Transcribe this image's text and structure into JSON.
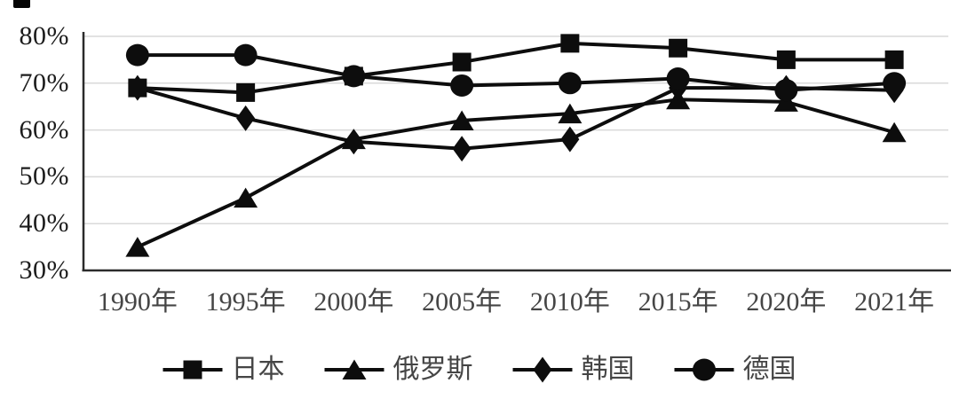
{
  "page": {
    "background": "#ffffff",
    "top_left_cropped_mark": true
  },
  "chart_data": {
    "type": "line",
    "title": "",
    "xlabel": "",
    "ylabel": "",
    "categories": [
      "1990年",
      "1995年",
      "2000年",
      "2005年",
      "2010年",
      "2015年",
      "2020年",
      "2021年"
    ],
    "series": [
      {
        "name": "日本",
        "marker": "square",
        "values": [
          69,
          68,
          71.5,
          74.5,
          78.5,
          77.5,
          75,
          75
        ]
      },
      {
        "name": "俄罗斯",
        "marker": "triangle",
        "values": [
          35,
          45.5,
          58,
          62,
          63.5,
          66.5,
          66,
          59.5
        ]
      },
      {
        "name": "韩国",
        "marker": "diamond",
        "values": [
          69,
          62.5,
          57.5,
          56,
          58,
          69,
          69,
          68.5
        ]
      },
      {
        "name": "德国",
        "marker": "circle",
        "values": [
          76,
          76,
          71.5,
          69.5,
          70,
          71,
          68.5,
          70
        ]
      }
    ],
    "ylim": [
      30,
      80
    ],
    "ytick_step": 10,
    "ytick_labels": [
      "30%",
      "40%",
      "50%",
      "60%",
      "70%",
      "80%"
    ],
    "grid": "horizontal",
    "legend_position": "bottom",
    "colors": {
      "line": "#0d0d0d",
      "marker": "#0d0d0d",
      "gridline": "#d9d9d9",
      "axis": "#2b2b2b",
      "ytick_label": "#1c1c1c",
      "xtick_label": "#454545",
      "legend_text": "#454545"
    }
  }
}
